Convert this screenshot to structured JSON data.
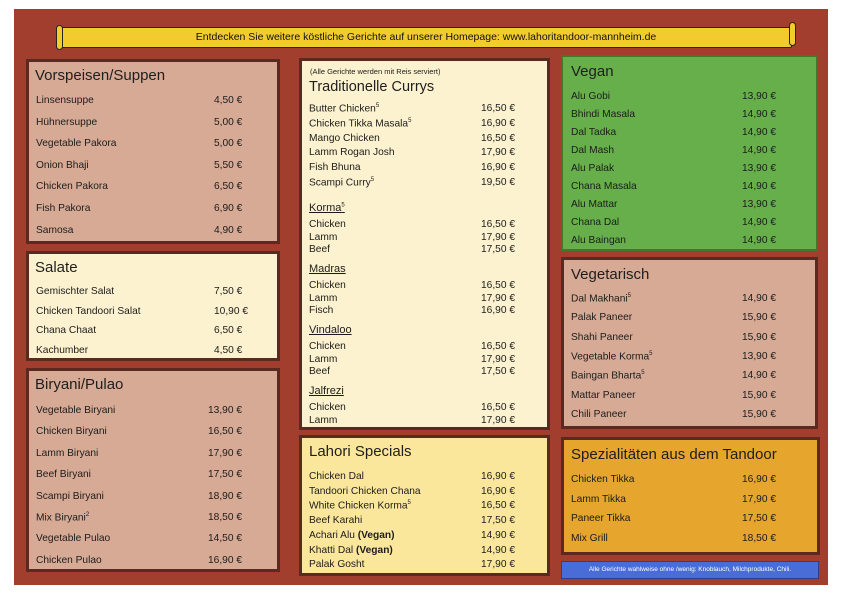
{
  "banner": "Entdecken Sie weitere köstliche Gerichte auf unserer Homepage: www.lahoritandoor-mannheim.de",
  "colors": {
    "background": "#a23e2d",
    "beige": "#d7aa95",
    "cream": "#fdf2cf",
    "yellow": "#fbe79c",
    "green": "#66af4a",
    "orange": "#e6a52c",
    "blue": "#4a6cd6"
  },
  "vorspeisen": {
    "title": "Vorspeisen/Suppen",
    "items": [
      {
        "name": "Linsensuppe",
        "price": "4,50 €"
      },
      {
        "name": "Hühnersuppe",
        "price": "5,00 €"
      },
      {
        "name": "Vegetable Pakora",
        "price": "5,00 €"
      },
      {
        "name": "Onion Bhaji",
        "price": "5,50 €"
      },
      {
        "name": "Chicken Pakora",
        "price": "6,50 €"
      },
      {
        "name": "Fish Pakora",
        "price": "6,90 €"
      },
      {
        "name": "Samosa",
        "price": "4,90 €"
      }
    ]
  },
  "salate": {
    "title": "Salate",
    "items": [
      {
        "name": "Gemischter Salat",
        "price": "7,50 €"
      },
      {
        "name": "Chicken Tandoori Salat",
        "price": "10,90 €"
      },
      {
        "name": "Chana Chaat",
        "price": "6,50 €"
      },
      {
        "name": "Kachumber",
        "price": "4,50 €"
      }
    ]
  },
  "biryani": {
    "title": "Biryani/Pulao",
    "items": [
      {
        "name": "Vegetable Biryani",
        "price": "13,90 €"
      },
      {
        "name": "Chicken Biryani",
        "price": "16,50 €"
      },
      {
        "name": "Lamm Biryani",
        "price": "17,90 €"
      },
      {
        "name": "Beef Biryani",
        "price": "17,50 €"
      },
      {
        "name": "Scampi Biryani",
        "price": "18,90 €"
      },
      {
        "name": "Mix Biryani",
        "sup": "2",
        "price": "18,50 €"
      },
      {
        "name": "Vegetable Pulao",
        "price": "14,50 €"
      },
      {
        "name": "Chicken Pulao",
        "price": "16,90 €"
      }
    ]
  },
  "currys": {
    "note": "(Alle Gerichte werden mit Reis serviert)",
    "title": "Traditionelle Currys",
    "items": [
      {
        "name": "Butter Chicken",
        "sup": "5",
        "price": "16,50 €"
      },
      {
        "name": "Chicken Tikka Masala",
        "sup": "5",
        "price": "16,90 €"
      },
      {
        "name": "Mango Chicken",
        "price": "16,50 €"
      },
      {
        "name": "Lamm Rogan Josh",
        "price": "17,90 €"
      },
      {
        "name": "Fish Bhuna",
        "price": "16,90 €"
      },
      {
        "name": "Scampi Curry",
        "sup": "5",
        "price": "19,50 €"
      }
    ],
    "korma": {
      "title": "Korma",
      "sup": "5",
      "items": [
        {
          "name": "Chicken",
          "price": "16,50 €"
        },
        {
          "name": "Lamm",
          "price": "17,90 €"
        },
        {
          "name": "Beef",
          "price": "17,50 €"
        }
      ]
    },
    "madras": {
      "title": "Madras",
      "items": [
        {
          "name": "Chicken",
          "price": "16,50 €"
        },
        {
          "name": "Lamm",
          "price": "17,90 €"
        },
        {
          "name": "Fisch",
          "price": "16,90 €"
        }
      ]
    },
    "vindaloo": {
      "title": "Vindaloo",
      "items": [
        {
          "name": "Chicken",
          "price": "16,50 €"
        },
        {
          "name": "Lamm",
          "price": "17,90 €"
        },
        {
          "name": "Beef",
          "price": "17,50 €"
        }
      ]
    },
    "jalfrezi": {
      "title": "Jalfrezi",
      "items": [
        {
          "name": "Chicken",
          "price": "16,50 €"
        },
        {
          "name": "Lamm",
          "price": "17,90 €"
        }
      ]
    }
  },
  "lahori": {
    "title": "Lahori Specials",
    "items": [
      {
        "name": "Chicken Dal",
        "price": "16,90 €"
      },
      {
        "name": "Tandoori Chicken Chana",
        "price": "16,90 €"
      },
      {
        "name": "White Chicken Korma",
        "sup": "5",
        "price": "16,50 €"
      },
      {
        "name": "Beef Karahi",
        "price": "17,50 €"
      },
      {
        "name": "Achari Alu",
        "bold": "(Vegan)",
        "price": "14,90 €"
      },
      {
        "name": "Khatti Dal",
        "bold": "(Vegan)",
        "price": "14,90 €"
      },
      {
        "name": "Palak Gosht",
        "price": "17,90 €"
      }
    ]
  },
  "vegan": {
    "title": "Vegan",
    "items": [
      {
        "name": "Alu Gobi",
        "price": "13,90 €"
      },
      {
        "name": "Bhindi Masala",
        "price": "14,90 €"
      },
      {
        "name": "Dal Tadka",
        "price": "14,90 €"
      },
      {
        "name": "Dal Mash",
        "price": "14,90 €"
      },
      {
        "name": "Alu Palak",
        "price": "13,90 €"
      },
      {
        "name": "Chana Masala",
        "price": "14,90 €"
      },
      {
        "name": "Alu Mattar",
        "price": "13,90 €"
      },
      {
        "name": "Chana Dal",
        "price": "14,90 €"
      },
      {
        "name": "Alu Baingan",
        "price": "14,90 €"
      }
    ]
  },
  "vegetarisch": {
    "title": "Vegetarisch",
    "items": [
      {
        "name": "Dal Makhani",
        "sup": "5",
        "price": "14,90 €"
      },
      {
        "name": "Palak Paneer",
        "price": "15,90 €"
      },
      {
        "name": "Shahi Paneer",
        "price": "15,90 €"
      },
      {
        "name": "Vegetable Korma",
        "sup": "5",
        "price": "13,90 €"
      },
      {
        "name": "Baingan Bharta",
        "sup": "5",
        "price": "14,90 €"
      },
      {
        "name": "Mattar Paneer",
        "price": "15,90 €"
      },
      {
        "name": "Chili Paneer",
        "price": "15,90 €"
      }
    ]
  },
  "tandoor": {
    "title": "Spezialitäten aus dem Tandoor",
    "items": [
      {
        "name": "Chicken Tikka",
        "price": "16,90 €"
      },
      {
        "name": "Lamm Tikka",
        "price": "17,90 €"
      },
      {
        "name": "Paneer Tikka",
        "price": "17,50 €"
      },
      {
        "name": "Mix Grill",
        "price": "18,50 €"
      }
    ]
  },
  "footnote": "Alle Gerichte wahlweise ohne /wenig: Knoblauch, Milchprodukte, Chili."
}
